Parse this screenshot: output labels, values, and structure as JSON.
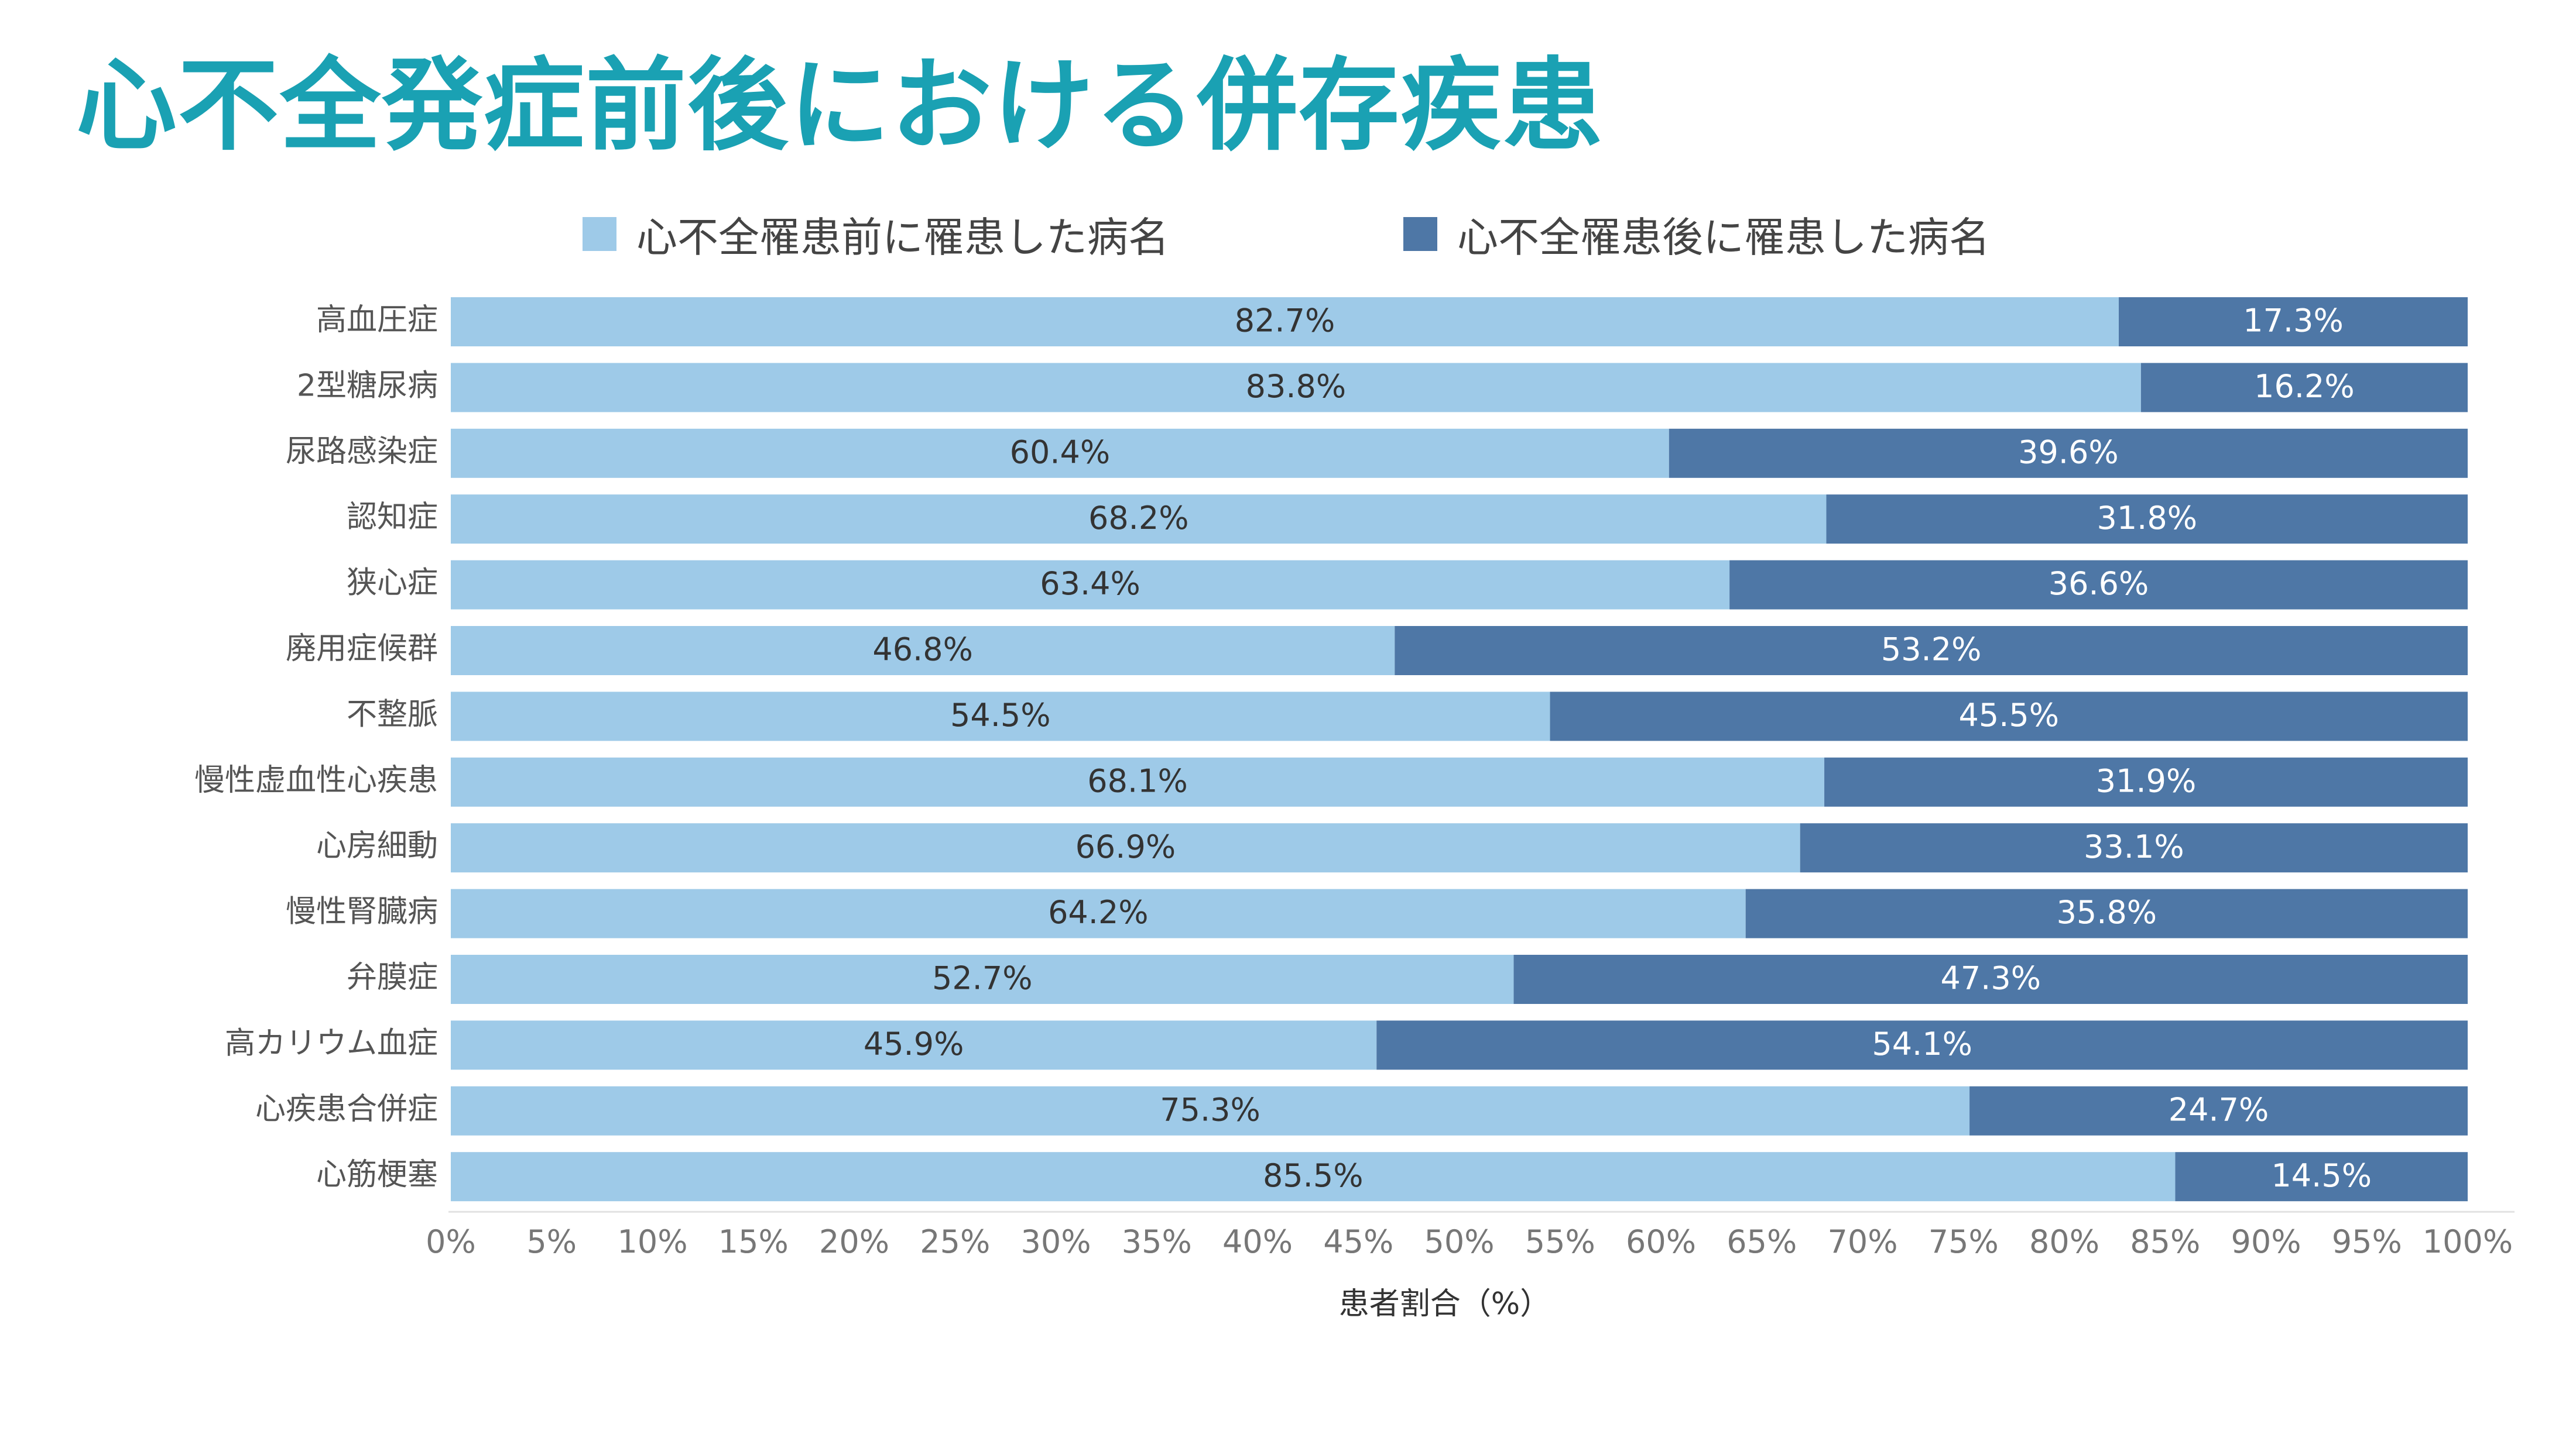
{
  "title": "心不全発症前後における併存疾患",
  "colors": {
    "title": "#1aa1b3",
    "before": "#9ecae8",
    "after": "#4e77a6"
  },
  "chart_data": {
    "type": "bar",
    "orientation": "horizontal",
    "stacked": true,
    "categories": [
      "高血圧症",
      "2型糖尿病",
      "尿路感染症",
      "認知症",
      "狭心症",
      "廃用症候群",
      "不整脈",
      "慢性虚血性心疾患",
      "心房細動",
      "慢性腎臓病",
      "弁膜症",
      "高カリウム血症",
      "心疾患合併症",
      "心筋梗塞"
    ],
    "series": [
      {
        "name": "心不全罹患前に罹患した病名",
        "values": [
          82.7,
          83.8,
          60.4,
          68.2,
          63.4,
          46.8,
          54.5,
          68.1,
          66.9,
          64.2,
          52.7,
          45.9,
          75.3,
          85.5
        ]
      },
      {
        "name": "心不全罹患後に罹患した病名",
        "values": [
          17.3,
          16.2,
          39.6,
          31.8,
          36.6,
          53.2,
          45.5,
          31.9,
          33.1,
          35.8,
          47.3,
          54.1,
          24.7,
          14.5
        ]
      }
    ],
    "xlabel": "患者割合（%）",
    "xlim": [
      0,
      100
    ],
    "xticks": [
      "0%",
      "5%",
      "10%",
      "15%",
      "20%",
      "25%",
      "30%",
      "35%",
      "40%",
      "45%",
      "50%",
      "55%",
      "60%",
      "65%",
      "70%",
      "75%",
      "80%",
      "85%",
      "90%",
      "95%",
      "100%"
    ],
    "legend_position": "top"
  }
}
